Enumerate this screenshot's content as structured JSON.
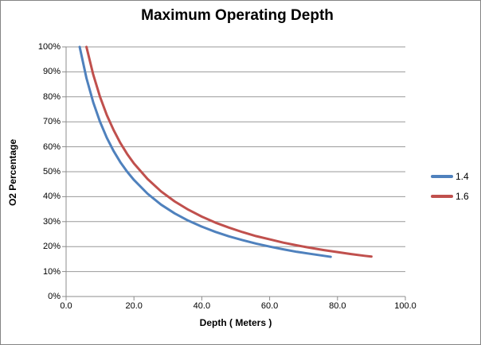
{
  "chart": {
    "title": "Maximum Operating Depth"
  },
  "chart_data": {
    "type": "line",
    "title": "Maximum Operating Depth",
    "xlabel": "Depth ( Meters )",
    "ylabel": "O2 Percentage",
    "xlim": [
      0,
      100
    ],
    "ylim": [
      0,
      100
    ],
    "grid": "horizontal",
    "legend_position": "right",
    "x_tick_values": [
      0,
      20,
      40,
      60,
      80,
      100
    ],
    "x_tick_labels": [
      "0.0",
      "20.0",
      "40.0",
      "60.0",
      "80.0",
      "100.0"
    ],
    "y_tick_values": [
      0,
      10,
      20,
      30,
      40,
      50,
      60,
      70,
      80,
      90,
      100
    ],
    "y_tick_labels": [
      "0%",
      "10%",
      "20%",
      "30%",
      "40%",
      "50%",
      "60%",
      "70%",
      "80%",
      "90%",
      "100%"
    ],
    "series": [
      {
        "name": "1.4",
        "color": "#4F81BD",
        "points": [
          [
            4,
            100
          ],
          [
            6,
            87.5
          ],
          [
            8,
            77.8
          ],
          [
            10,
            70
          ],
          [
            12,
            63.6
          ],
          [
            14,
            58.3
          ],
          [
            16,
            53.8
          ],
          [
            18,
            50
          ],
          [
            20,
            46.7
          ],
          [
            24,
            41.2
          ],
          [
            28,
            36.8
          ],
          [
            32,
            33.3
          ],
          [
            36,
            30.4
          ],
          [
            40,
            28
          ],
          [
            44,
            25.9
          ],
          [
            48,
            24.1
          ],
          [
            52,
            22.6
          ],
          [
            56,
            21.2
          ],
          [
            60,
            20
          ],
          [
            64,
            18.9
          ],
          [
            68,
            17.9
          ],
          [
            72,
            17.1
          ],
          [
            76,
            16.3
          ],
          [
            78,
            15.9
          ]
        ]
      },
      {
        "name": "1.6",
        "color": "#C0504D",
        "points": [
          [
            6,
            100
          ],
          [
            8,
            88.9
          ],
          [
            10,
            80
          ],
          [
            12,
            72.7
          ],
          [
            14,
            66.7
          ],
          [
            16,
            61.5
          ],
          [
            18,
            57.1
          ],
          [
            20,
            53.3
          ],
          [
            24,
            47.1
          ],
          [
            28,
            42.1
          ],
          [
            32,
            38.1
          ],
          [
            36,
            34.8
          ],
          [
            40,
            32
          ],
          [
            44,
            29.6
          ],
          [
            48,
            27.6
          ],
          [
            52,
            25.8
          ],
          [
            56,
            24.2
          ],
          [
            60,
            22.9
          ],
          [
            64,
            21.6
          ],
          [
            68,
            20.5
          ],
          [
            72,
            19.5
          ],
          [
            76,
            18.6
          ],
          [
            80,
            17.8
          ],
          [
            84,
            17
          ],
          [
            88,
            16.3
          ],
          [
            90,
            16
          ]
        ]
      }
    ]
  },
  "colors": {
    "axis": "#8C8C8C",
    "grid": "#999999",
    "border": "#848484",
    "text": "#000000",
    "background": "#FFFFFF"
  }
}
